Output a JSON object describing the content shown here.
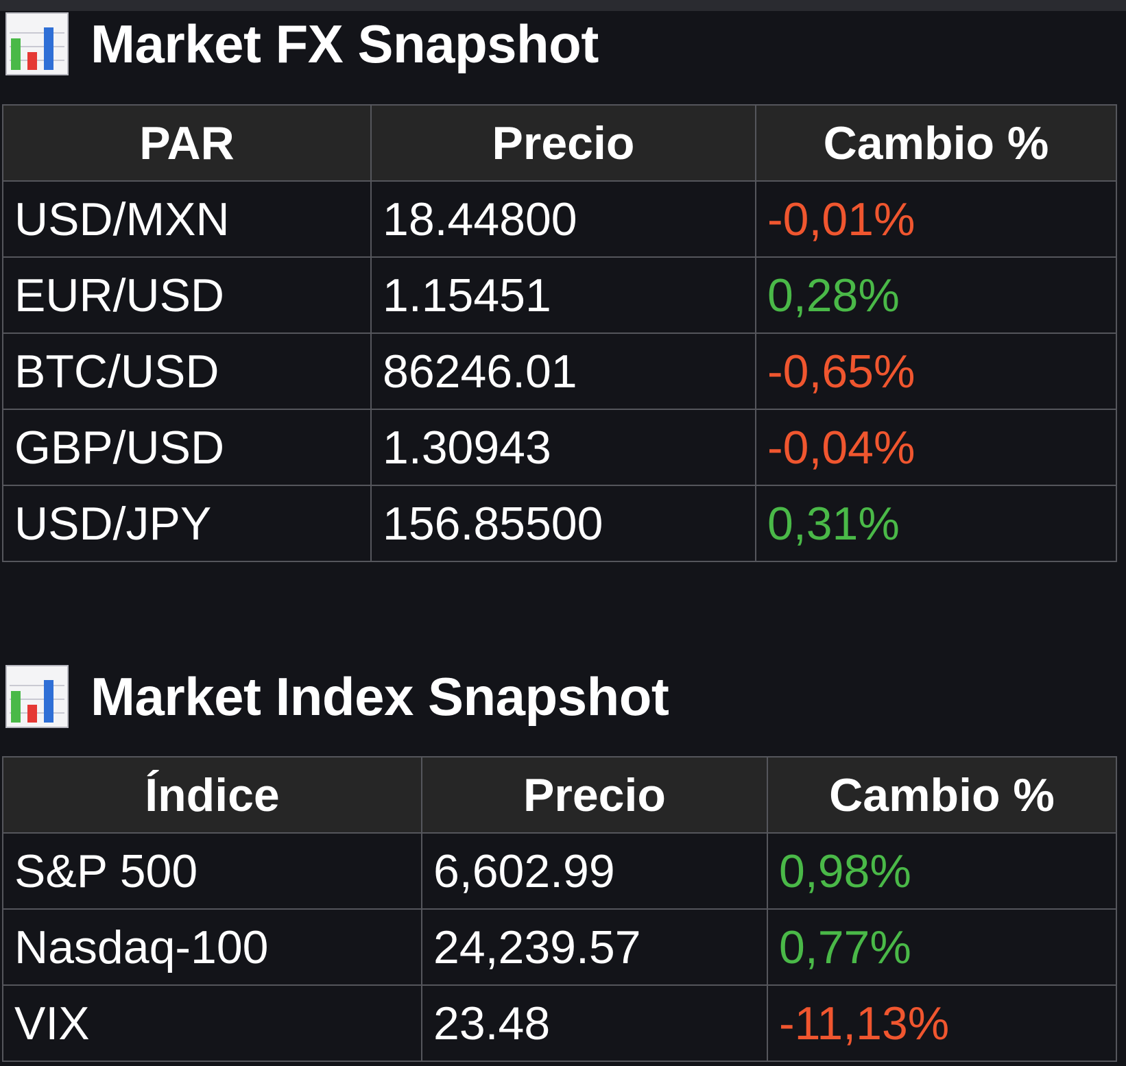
{
  "colors": {
    "background": "#131419",
    "header_bg": "#262626",
    "border": "#55565c",
    "negative": "#f0562f",
    "positive": "#4ab948"
  },
  "fx": {
    "icon": "bar-chart-icon",
    "title": "Market FX Snapshot",
    "headers": [
      "PAR",
      "Precio",
      "Cambio %"
    ],
    "rows": [
      {
        "name": "USD/MXN",
        "price": "18.44800",
        "change": "-0,01%",
        "direction": "negative"
      },
      {
        "name": "EUR/USD",
        "price": "1.15451",
        "change": "0,28%",
        "direction": "positive"
      },
      {
        "name": "BTC/USD",
        "price": "86246.01",
        "change": "-0,65%",
        "direction": "negative"
      },
      {
        "name": "GBP/USD",
        "price": "1.30943",
        "change": "-0,04%",
        "direction": "negative"
      },
      {
        "name": "USD/JPY",
        "price": "156.85500",
        "change": "0,31%",
        "direction": "positive"
      }
    ]
  },
  "index": {
    "icon": "bar-chart-icon",
    "title": "Market Index Snapshot",
    "headers": [
      "Índice",
      "Precio",
      "Cambio %"
    ],
    "rows": [
      {
        "name": "S&P 500",
        "price": "6,602.99",
        "change": "0,98%",
        "direction": "positive"
      },
      {
        "name": "Nasdaq-100",
        "price": "24,239.57",
        "change": "0,77%",
        "direction": "positive"
      },
      {
        "name": "VIX",
        "price": "23.48",
        "change": "-11,13%",
        "direction": "negative"
      }
    ]
  }
}
